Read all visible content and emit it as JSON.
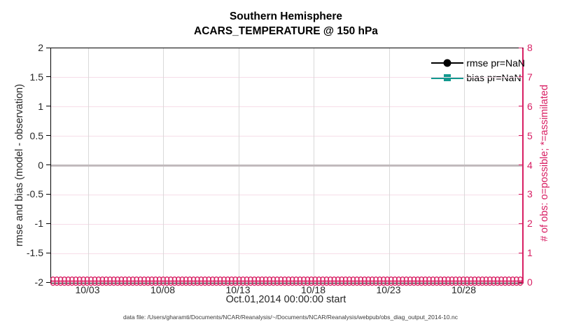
{
  "title": {
    "line1": "Southern Hemisphere",
    "line2": "ACARS_TEMPERATURE @ 150 hPa"
  },
  "axes": {
    "left": {
      "label": "rmse and bias (model - observation)",
      "ticks": [
        "2",
        "1.5",
        "1",
        "0.5",
        "0",
        "-0.5",
        "-1",
        "-1.5",
        "-2"
      ]
    },
    "right": {
      "label": "# of obs: o=possible; *=assimilated",
      "ticks": [
        "8",
        "7",
        "6",
        "5",
        "4",
        "3",
        "2",
        "1",
        "0"
      ]
    },
    "x": {
      "label": "Oct.01,2014 00:00:00 start",
      "ticks": [
        "10/03",
        "10/08",
        "10/13",
        "10/18",
        "10/23",
        "10/28"
      ]
    }
  },
  "legend": {
    "items": [
      {
        "label": "rmse pr=NaN",
        "marker": "circle",
        "color": "#000000"
      },
      {
        "label": "bias pr=NaN",
        "marker": "square",
        "color": "#12998f"
      }
    ]
  },
  "caption": "data file: /Users/gharamti/Documents/NCAR/Reanalysis/~/Documents/NCAR/Reanalysis/webpub/obs_diag_output_2014-10.nc",
  "colors": {
    "pink_axis": "#d81f63",
    "teal": "#12998f",
    "grid_vertical": "#d9d9d9",
    "grid_horizontal": "#f6dde8",
    "zero_line": "#c1babd",
    "tick_text": "#262626"
  },
  "chart_data": {
    "type": "line",
    "title": "Southern Hemisphere",
    "subtitle": "ACARS_TEMPERATURE @ 150 hPa",
    "xlabel": "Oct.01,2014 00:00:00 start",
    "ylabel_left": "rmse and bias (model - observation)",
    "ylabel_right": "# of obs: o=possible; *=assimilated",
    "ylim_left": [
      -2,
      2
    ],
    "yticks_left": [
      2,
      1.5,
      1,
      0.5,
      0,
      -0.5,
      -1,
      -1.5,
      -2
    ],
    "ylim_right": [
      0,
      8
    ],
    "yticks_right": [
      8,
      7,
      6,
      5,
      4,
      3,
      2,
      1,
      0
    ],
    "x_tick_labels": [
      "10/03",
      "10/08",
      "10/13",
      "10/18",
      "10/23",
      "10/28"
    ],
    "x_span": "Oct 01 2014 00:00 through end of October 2014",
    "grid": true,
    "legend_position": "top-right-inside",
    "series": [
      {
        "name": "rmse pr=NaN",
        "style": "line+filled-circle",
        "color": "#000000",
        "values": null,
        "note": "pr=NaN, no curve drawn"
      },
      {
        "name": "bias pr=NaN",
        "style": "line+filled-square",
        "color": "#12998f",
        "values": null,
        "note": "pr=NaN, no curve drawn"
      },
      {
        "name": "possible obs (o)",
        "axis": "right",
        "marker": "o",
        "color": "#d81f63",
        "constant_value": 0,
        "n_points": 124
      },
      {
        "name": "assimilated obs (*)",
        "axis": "right",
        "marker": "*",
        "color": "#d81f63",
        "constant_value": 0,
        "n_points": 124
      }
    ],
    "zero_line": {
      "value": 0,
      "color": "#c1babd"
    }
  }
}
